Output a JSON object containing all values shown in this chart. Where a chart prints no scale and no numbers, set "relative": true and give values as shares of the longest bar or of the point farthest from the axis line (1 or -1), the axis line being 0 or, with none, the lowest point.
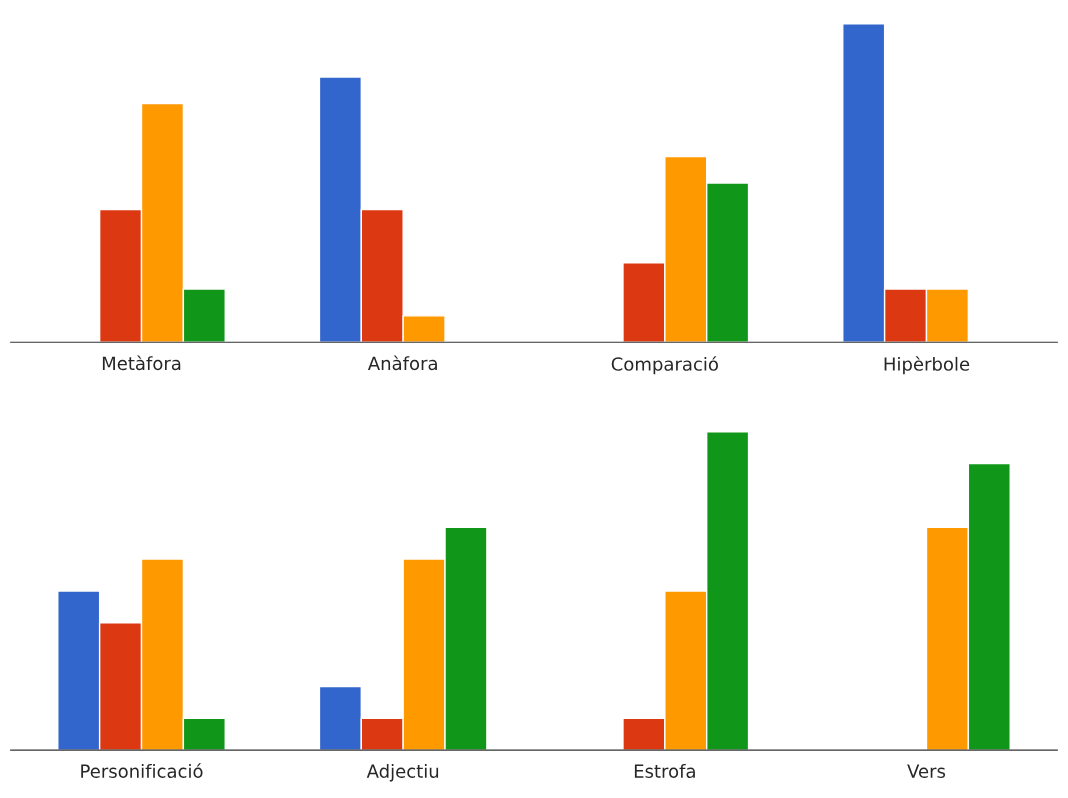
{
  "chart_data": [
    {
      "type": "bar",
      "relative": true,
      "categories": [
        "Metàfora",
        "Anàfora",
        "Comparació",
        "Hipèrbole"
      ],
      "series": [
        {
          "color": "#3366cc",
          "values": [
            null,
            0.833,
            null,
            1
          ]
        },
        {
          "color": "#dc3912",
          "values": [
            0.417,
            0.417,
            0.25,
            0.167
          ]
        },
        {
          "color": "#ff9900",
          "values": [
            0.75,
            0.083,
            0.583,
            0.167
          ]
        },
        {
          "color": "#109618",
          "values": [
            0.167,
            null,
            0.5,
            null
          ]
        }
      ]
    },
    {
      "type": "bar",
      "relative": true,
      "categories": [
        "Personificació",
        "Adjectiu",
        "Estrofa",
        "Vers"
      ],
      "series": [
        {
          "color": "#3366cc",
          "values": [
            0.5,
            0.2,
            null,
            null
          ]
        },
        {
          "color": "#dc3912",
          "values": [
            0.4,
            0.1,
            0.1,
            null
          ]
        },
        {
          "color": "#ff9900",
          "values": [
            0.6,
            0.6,
            0.5,
            0.7
          ]
        },
        {
          "color": "#109618",
          "values": [
            0.1,
            0.7,
            1,
            0.9
          ]
        }
      ]
    }
  ]
}
